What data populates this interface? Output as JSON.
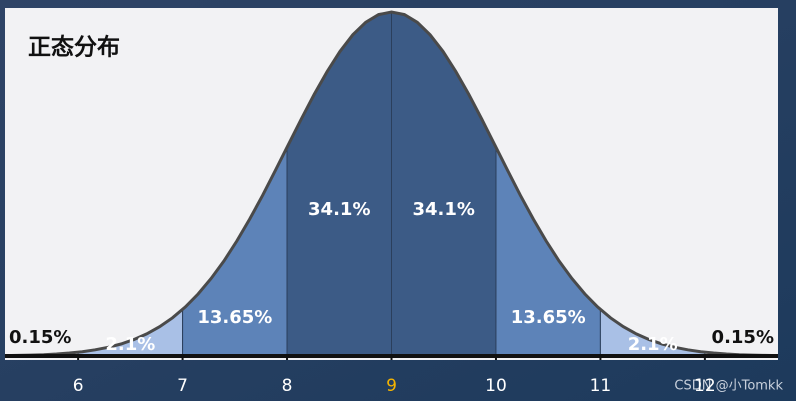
{
  "chart_data": {
    "type": "normal-regions",
    "title": "正态分布",
    "xticks": [
      6,
      7,
      8,
      9,
      10,
      11,
      12
    ],
    "xlim": [
      5.3,
      12.7
    ],
    "xtick_highlight": 9,
    "highlight_color": "#f5b400",
    "values": [
      0.15,
      2.1,
      13.65,
      34.1,
      34.1,
      13.65,
      2.1,
      0.15
    ],
    "value_labels": [
      "0.15%",
      "2.1%",
      "13.65%",
      "34.1%",
      "34.1%",
      "13.65%",
      "2.1%",
      "0.15%"
    ],
    "colors": [
      "#f2f2f4",
      "#a9c0e6",
      "#5d83b8",
      "#3c5b86",
      "#3c5b86",
      "#5d83b8",
      "#a9c0e6",
      "#f2f2f4"
    ],
    "watermark": "CSDN @小Tomkk"
  }
}
